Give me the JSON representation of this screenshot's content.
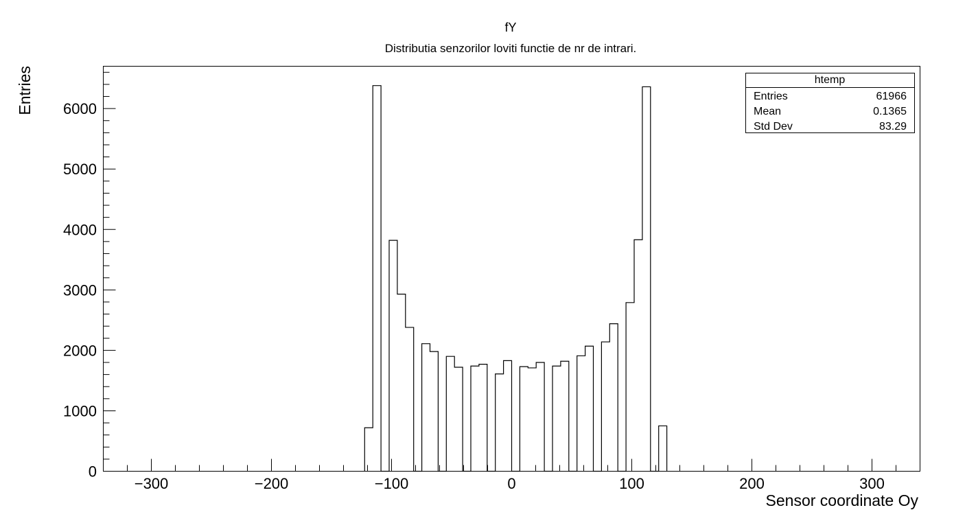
{
  "chart_data": {
    "type": "bar",
    "title": "fY",
    "subtitle": "Distributia senzorilor loviti functie de nr de intrari.",
    "xlabel": "Sensor coordinate Oy",
    "ylabel": "Entries",
    "xlim": [
      -340,
      340
    ],
    "ylim": [
      0,
      6700
    ],
    "grid": false,
    "x_ticks": [
      -300,
      -200,
      -100,
      0,
      100,
      200,
      300
    ],
    "x_tick_labels": [
      "−300",
      "−200",
      "−100",
      "0",
      "100",
      "200",
      "300"
    ],
    "y_ticks": [
      0,
      1000,
      2000,
      3000,
      4000,
      5000,
      6000
    ],
    "y_tick_labels": [
      "0",
      "1000",
      "2000",
      "3000",
      "4000",
      "5000",
      "6000"
    ],
    "bin_width": 6.8,
    "bin_low_edges": [
      -122.4,
      -115.6,
      -108.8,
      -102.0,
      -95.2,
      -88.4,
      -81.6,
      -74.8,
      -68.0,
      -61.2,
      -54.4,
      -47.6,
      -40.8,
      -34.0,
      -27.2,
      -20.4,
      -13.6,
      -6.8,
      0.0,
      6.8,
      13.6,
      20.4,
      27.2,
      34.0,
      40.8,
      47.6,
      54.4,
      61.2,
      68.0,
      74.8,
      81.6,
      88.4,
      95.2,
      102.0,
      108.8,
      115.6,
      122.4
    ],
    "values": [
      720,
      6380,
      0,
      3820,
      2930,
      2380,
      0,
      2110,
      1980,
      0,
      1900,
      1720,
      0,
      1740,
      1770,
      0,
      1610,
      1830,
      0,
      1730,
      1710,
      1800,
      0,
      1740,
      1820,
      0,
      1910,
      2070,
      0,
      2140,
      2440,
      0,
      2790,
      3830,
      6360,
      0,
      750
    ],
    "stats": {
      "name": "htemp",
      "rows": [
        {
          "label": "Entries",
          "value": "61966"
        },
        {
          "label": "Mean",
          "value": "0.1365"
        },
        {
          "label": "Std Dev",
          "value": "83.29"
        }
      ]
    }
  }
}
